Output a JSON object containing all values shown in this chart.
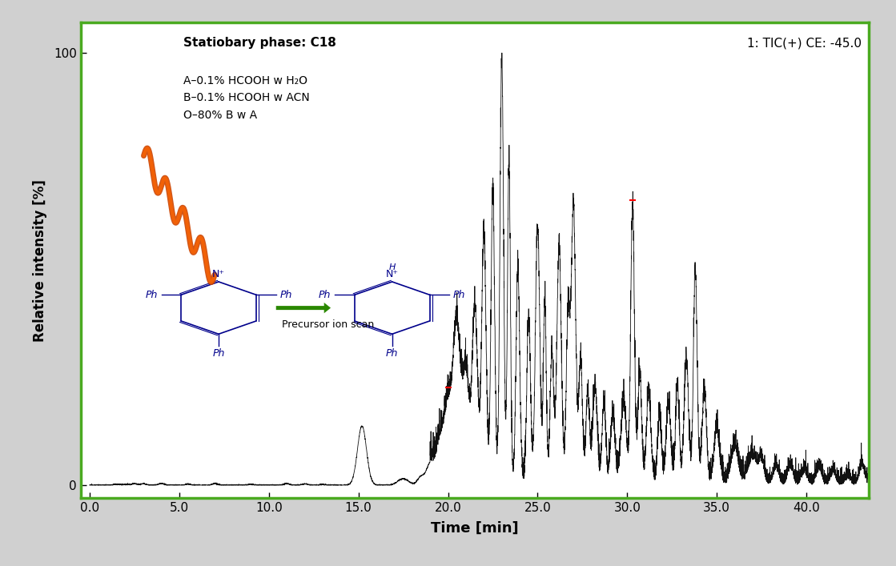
{
  "title": "",
  "xlabel": "Time [min]",
  "ylabel": "Relative intensity [%]",
  "xlim": [
    -0.5,
    43.5
  ],
  "ylim": [
    -3,
    107
  ],
  "xticks": [
    0.0,
    5.0,
    10.0,
    15.0,
    20.0,
    25.0,
    30.0,
    35.0,
    40.0
  ],
  "yticks": [
    0,
    100
  ],
  "ytick_labels": [
    "0",
    "100"
  ],
  "background_color": "#d0d0d0",
  "plot_bg_color": "#ffffff",
  "border_color": "#4aaa20",
  "line_color": "#111111",
  "annotation_top_left_bold": "Statiobary phase: C18",
  "annotation_top_left_normal": "A–0.1% HCOOH w H₂O\nB–0.1% HCOOH w ACN\nO–80% B w A",
  "annotation_top_right": "1: TIC(+) CE: -45.0",
  "arrow_label": "Precursor ion scan",
  "arrow_color": "#2a8800",
  "mol_color": "#00008b",
  "red_mark_color": "#ff0000"
}
